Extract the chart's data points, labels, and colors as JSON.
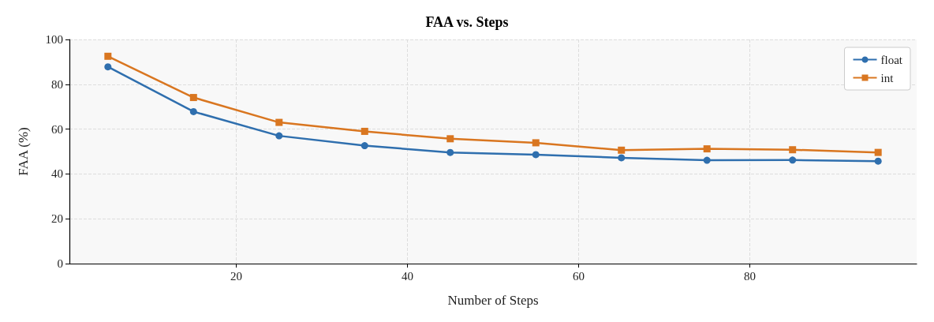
{
  "chart_data": {
    "type": "line",
    "title": "FAA vs. Steps",
    "xlabel": "Number of Steps",
    "ylabel": "FAA (%)",
    "x": [
      5,
      15,
      25,
      35,
      45,
      55,
      65,
      75,
      85,
      95
    ],
    "series": [
      {
        "name": "float",
        "color": "#2f6fae",
        "marker": "circle",
        "values": [
          87.8,
          67.8,
          57.0,
          52.6,
          49.6,
          48.6,
          47.2,
          46.1,
          46.2,
          45.7
        ]
      },
      {
        "name": "int",
        "color": "#d97620",
        "marker": "square",
        "values": [
          92.5,
          74.1,
          63.0,
          59.0,
          55.7,
          53.9,
          50.6,
          51.2,
          50.8,
          49.6
        ]
      }
    ],
    "xlim": [
      0.5,
      99.5
    ],
    "xticks": [
      20,
      40,
      60,
      80
    ],
    "ylim": [
      0,
      100
    ],
    "yticks": [
      0,
      20,
      40,
      60,
      80,
      100
    ],
    "grid": true,
    "legend": "top right",
    "line_style": "solid"
  }
}
